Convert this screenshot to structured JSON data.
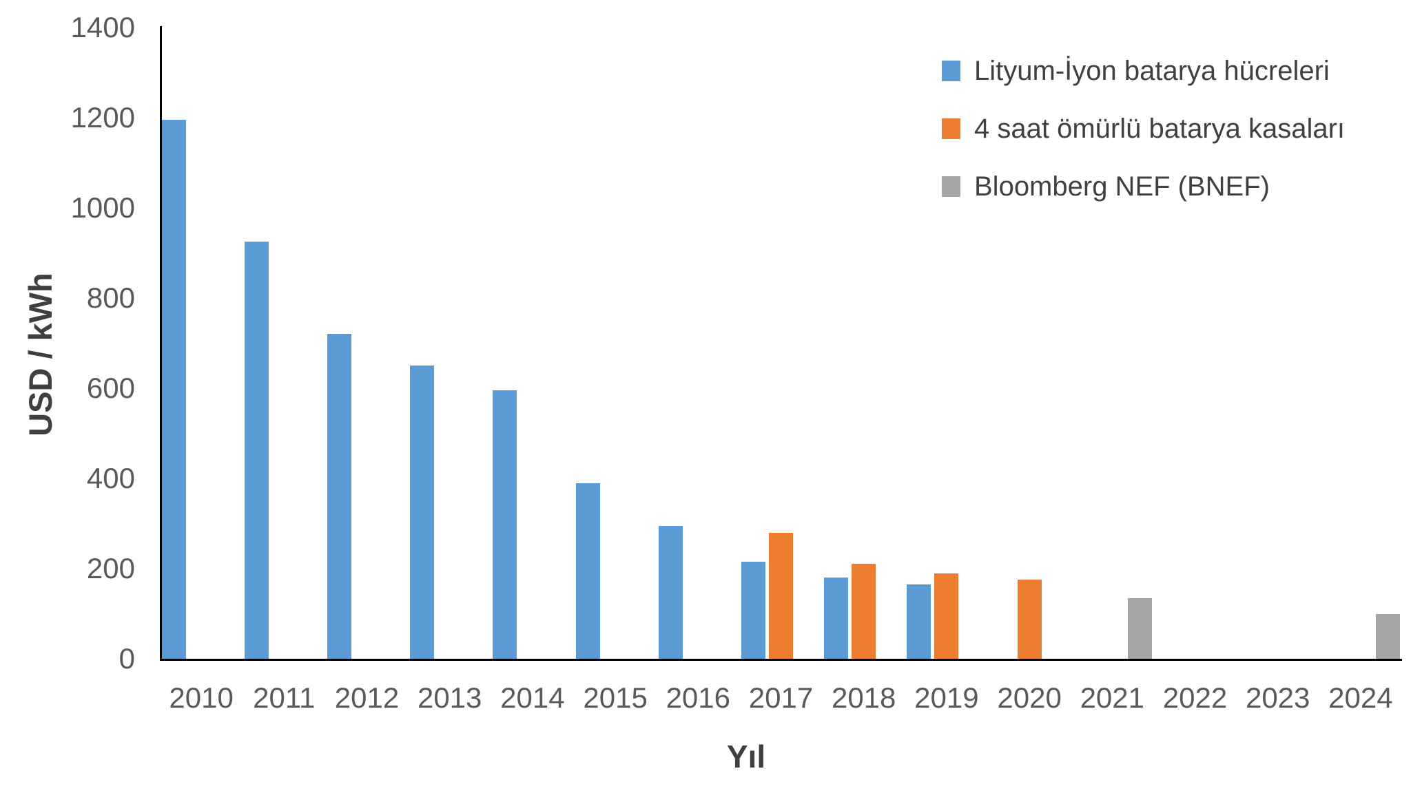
{
  "chart_data": {
    "type": "bar",
    "title": "",
    "xlabel": "Yıl",
    "ylabel": "USD / kWh",
    "ylim": [
      0,
      1400
    ],
    "ytick_step": 200,
    "ytick_labels": [
      "0",
      "200",
      "400",
      "600",
      "800",
      "1000",
      "1200",
      "1400"
    ],
    "categories": [
      "2010",
      "2011",
      "2012",
      "2013",
      "2014",
      "2015",
      "2016",
      "2017",
      "2018",
      "2019",
      "2020",
      "2021",
      "2022",
      "2023",
      "2024"
    ],
    "series": [
      {
        "name": "Lityum-İyon batarya hücreleri",
        "color": "#5B9BD5",
        "values": [
          1195,
          925,
          720,
          650,
          595,
          390,
          295,
          215,
          180,
          165,
          null,
          null,
          null,
          null,
          null
        ]
      },
      {
        "name": "4 saat ömürlü batarya kasaları",
        "color": "#ED7D31",
        "values": [
          null,
          null,
          null,
          null,
          null,
          null,
          null,
          280,
          210,
          190,
          175,
          null,
          null,
          null,
          null
        ]
      },
      {
        "name": "Bloomberg NEF (BNEF)",
        "color": "#A5A5A5",
        "values": [
          null,
          null,
          null,
          null,
          null,
          null,
          null,
          null,
          null,
          null,
          null,
          135,
          null,
          null,
          100
        ]
      }
    ],
    "legend_position": "top-right",
    "grid": false,
    "axis_color": "#000000",
    "tick_text_color": "#595959",
    "title_text_color": "#3F3F3F"
  }
}
